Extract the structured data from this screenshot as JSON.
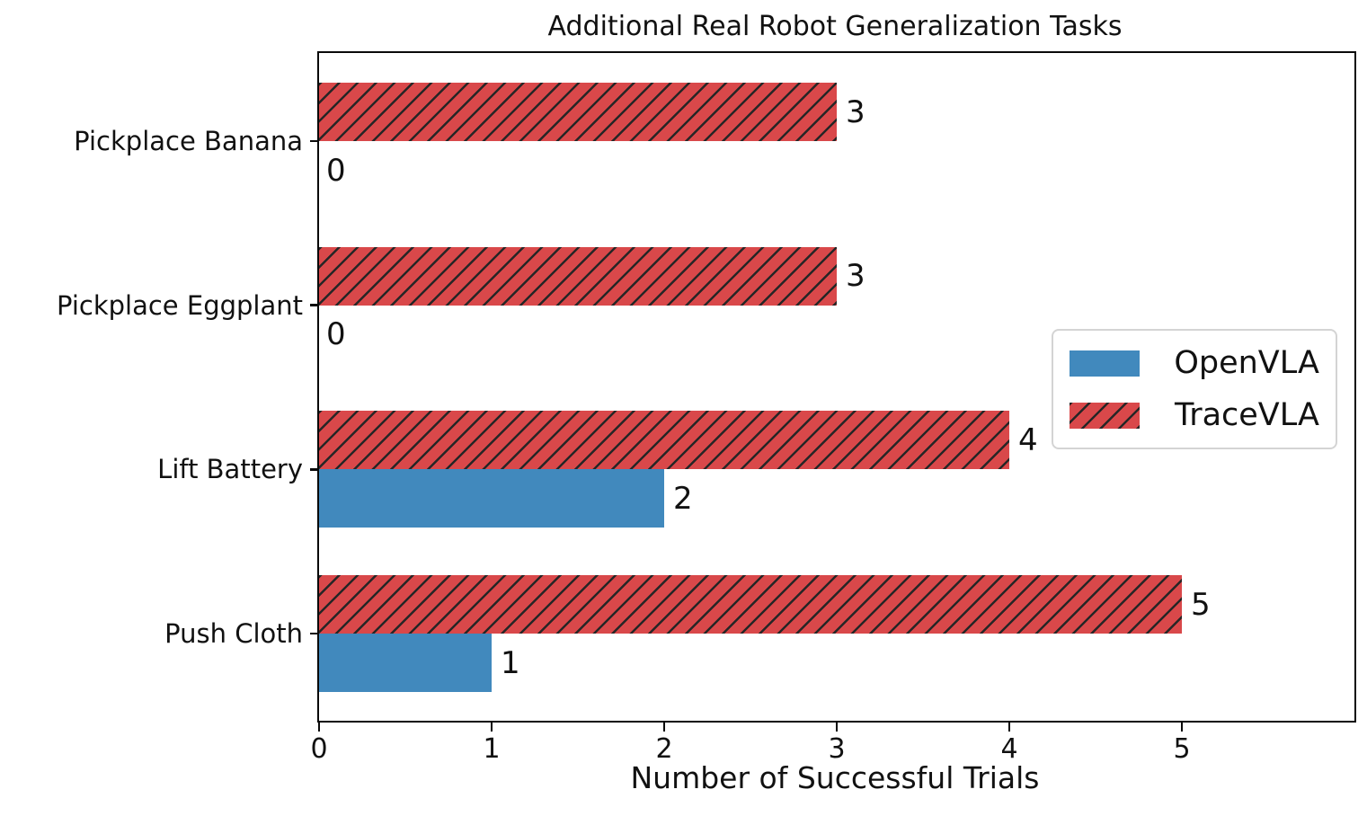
{
  "chart_data": {
    "type": "bar",
    "orientation": "horizontal",
    "title": "Additional Real Robot Generalization Tasks",
    "xlabel": "Number of Successful Trials",
    "ylabel": "",
    "categories": [
      "Pickplace Banana",
      "Pickplace Eggplant",
      "Lift Battery",
      "Push Cloth"
    ],
    "series": [
      {
        "name": "OpenVLA",
        "color": "#4189bd",
        "hatch": "none",
        "slot": "bottom",
        "values": [
          0,
          0,
          2,
          1
        ],
        "value_labels": [
          "0",
          "0",
          "2",
          "1"
        ]
      },
      {
        "name": "TraceVLA",
        "color": "#d9484a",
        "hatch": "diagonal-forward-slash",
        "hatch_color": "#262626",
        "slot": "top",
        "values": [
          3,
          3,
          4,
          5
        ],
        "value_labels": [
          "3",
          "3",
          "4",
          "5"
        ]
      }
    ],
    "xlim": [
      0,
      6
    ],
    "xticks": [
      "0",
      "1",
      "2",
      "3",
      "4",
      "5"
    ],
    "grid": false,
    "bar_value_labels": true,
    "legend": {
      "position": "center-right",
      "entries": [
        "OpenVLA",
        "TraceVLA"
      ]
    }
  }
}
